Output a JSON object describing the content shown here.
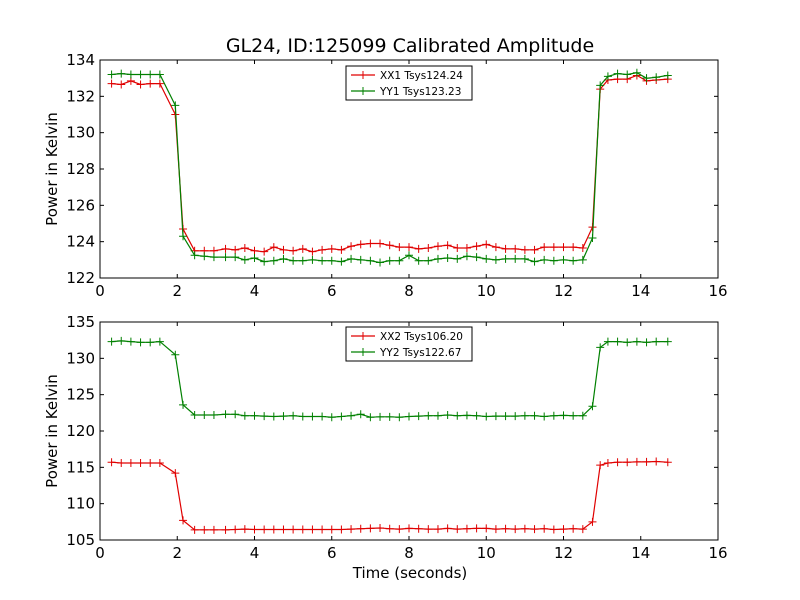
{
  "figure": {
    "title": "GL24, ID:125099 Calibrated Amplitude",
    "xlabel": "Time (seconds)"
  },
  "colors": {
    "red": "#e00000",
    "green": "#008000"
  },
  "chart_data": [
    {
      "type": "line",
      "title": "GL24, ID:125099 Calibrated Amplitude",
      "xlabel": "",
      "ylabel": "Power in Kelvin",
      "xlim": [
        0,
        16
      ],
      "ylim": [
        122,
        134
      ],
      "xticks": [
        0,
        2,
        4,
        6,
        8,
        10,
        12,
        14,
        16
      ],
      "yticks": [
        122,
        124,
        126,
        128,
        130,
        132,
        134
      ],
      "grid": false,
      "legend_position": "top-center",
      "x": [
        0.3,
        0.55,
        0.8,
        1.05,
        1.3,
        1.55,
        1.95,
        2.15,
        2.45,
        2.7,
        2.95,
        3.25,
        3.5,
        3.75,
        4.0,
        4.25,
        4.5,
        4.75,
        5.0,
        5.25,
        5.5,
        5.75,
        6.0,
        6.25,
        6.5,
        6.75,
        7.0,
        7.25,
        7.5,
        7.75,
        8.0,
        8.25,
        8.5,
        8.75,
        9.0,
        9.25,
        9.5,
        9.75,
        10.0,
        10.25,
        10.5,
        10.75,
        11.0,
        11.25,
        11.5,
        11.75,
        12.0,
        12.25,
        12.5,
        12.75,
        12.95,
        13.15,
        13.4,
        13.65,
        13.9,
        14.15,
        14.4,
        14.7
      ],
      "series": [
        {
          "name": "XX1 Tsys124.24",
          "color": "#e00000",
          "values": [
            132.7,
            132.65,
            132.85,
            132.65,
            132.7,
            132.7,
            131.0,
            124.7,
            123.5,
            123.5,
            123.5,
            123.6,
            123.55,
            123.65,
            123.5,
            123.45,
            123.7,
            123.55,
            123.5,
            123.6,
            123.45,
            123.55,
            123.6,
            123.55,
            123.75,
            123.85,
            123.9,
            123.9,
            123.8,
            123.7,
            123.7,
            123.6,
            123.65,
            123.75,
            123.8,
            123.65,
            123.65,
            123.75,
            123.85,
            123.7,
            123.6,
            123.6,
            123.55,
            123.55,
            123.7,
            123.7,
            123.7,
            123.7,
            123.65,
            124.8,
            132.4,
            132.9,
            132.95,
            132.95,
            133.15,
            132.85,
            132.9,
            132.95
          ]
        },
        {
          "name": "YY1 Tsys123.23",
          "color": "#008000",
          "values": [
            133.2,
            133.25,
            133.2,
            133.2,
            133.2,
            133.2,
            131.5,
            124.3,
            123.25,
            123.2,
            123.15,
            123.15,
            123.15,
            123.0,
            123.1,
            122.9,
            122.95,
            123.05,
            122.95,
            122.95,
            123.0,
            122.95,
            122.95,
            122.9,
            123.05,
            123.0,
            122.95,
            122.85,
            122.95,
            122.95,
            123.25,
            122.95,
            122.95,
            123.05,
            123.1,
            123.05,
            123.2,
            123.15,
            123.05,
            123.0,
            123.05,
            123.05,
            123.05,
            122.9,
            123.0,
            122.95,
            123.0,
            122.95,
            123.0,
            124.2,
            132.6,
            133.1,
            133.25,
            133.2,
            133.3,
            133.0,
            133.05,
            133.15
          ]
        }
      ]
    },
    {
      "type": "line",
      "title": "",
      "xlabel": "Time (seconds)",
      "ylabel": "Power in Kelvin",
      "xlim": [
        0,
        16
      ],
      "ylim": [
        105,
        135
      ],
      "xticks": [
        0,
        2,
        4,
        6,
        8,
        10,
        12,
        14,
        16
      ],
      "yticks": [
        105,
        110,
        115,
        120,
        125,
        130,
        135
      ],
      "grid": false,
      "legend_position": "top-center",
      "x": [
        0.3,
        0.55,
        0.8,
        1.05,
        1.3,
        1.55,
        1.95,
        2.15,
        2.45,
        2.7,
        2.95,
        3.25,
        3.5,
        3.75,
        4.0,
        4.25,
        4.5,
        4.75,
        5.0,
        5.25,
        5.5,
        5.75,
        6.0,
        6.25,
        6.5,
        6.75,
        7.0,
        7.25,
        7.5,
        7.75,
        8.0,
        8.25,
        8.5,
        8.75,
        9.0,
        9.25,
        9.5,
        9.75,
        10.0,
        10.25,
        10.5,
        10.75,
        11.0,
        11.25,
        11.5,
        11.75,
        12.0,
        12.25,
        12.5,
        12.75,
        12.95,
        13.15,
        13.4,
        13.65,
        13.9,
        14.15,
        14.4,
        14.7
      ],
      "series": [
        {
          "name": "XX2 Tsys106.20",
          "color": "#e00000",
          "values": [
            115.7,
            115.6,
            115.6,
            115.6,
            115.6,
            115.6,
            114.2,
            107.7,
            106.4,
            106.4,
            106.4,
            106.4,
            106.45,
            106.5,
            106.45,
            106.45,
            106.45,
            106.45,
            106.45,
            106.45,
            106.45,
            106.45,
            106.45,
            106.45,
            106.5,
            106.55,
            106.6,
            106.65,
            106.55,
            106.5,
            106.6,
            106.55,
            106.5,
            106.5,
            106.6,
            106.5,
            106.55,
            106.6,
            106.6,
            106.5,
            106.55,
            106.5,
            106.55,
            106.5,
            106.55,
            106.45,
            106.5,
            106.55,
            106.5,
            107.5,
            115.3,
            115.6,
            115.7,
            115.7,
            115.75,
            115.75,
            115.8,
            115.7
          ]
        },
        {
          "name": "YY2 Tsys122.67",
          "color": "#008000",
          "values": [
            132.3,
            132.4,
            132.3,
            132.2,
            132.2,
            132.3,
            130.5,
            123.6,
            122.2,
            122.2,
            122.2,
            122.3,
            122.3,
            122.1,
            122.1,
            122.05,
            122.0,
            122.05,
            122.1,
            122.0,
            122.0,
            122.0,
            121.9,
            122.0,
            122.1,
            122.3,
            121.9,
            121.95,
            121.95,
            121.9,
            122.0,
            122.05,
            122.1,
            122.1,
            122.2,
            122.1,
            122.15,
            122.1,
            122.0,
            122.05,
            122.05,
            122.05,
            122.1,
            122.1,
            122.0,
            122.1,
            122.15,
            122.1,
            122.1,
            123.4,
            131.5,
            132.3,
            132.3,
            132.2,
            132.3,
            132.2,
            132.3,
            132.3
          ]
        }
      ]
    }
  ]
}
